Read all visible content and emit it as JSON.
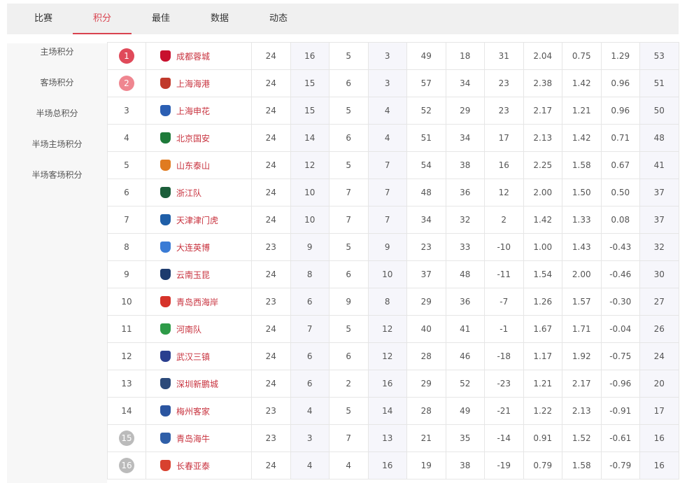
{
  "tabs": [
    "比赛",
    "积分",
    "最佳",
    "数据",
    "动态"
  ],
  "active_tab": 1,
  "sidebar": [
    "主场积分",
    "客场积分",
    "半场总积分",
    "半场主场积分",
    "半场客场积分"
  ],
  "colors": {
    "accent": "#d9434f",
    "rank1": "#e04a5a",
    "rank2": "#ef8690",
    "relegation": "#bbbbbb"
  },
  "rows": [
    {
      "rank": "1",
      "team": "成都蓉城",
      "logo": "#c8102e",
      "v": [
        "24",
        "16",
        "5",
        "3",
        "49",
        "18",
        "31",
        "2.04",
        "0.75",
        "1.29",
        "53"
      ]
    },
    {
      "rank": "2",
      "team": "上海海港",
      "logo": "#c0392b",
      "v": [
        "24",
        "15",
        "6",
        "3",
        "57",
        "34",
        "23",
        "2.38",
        "1.42",
        "0.96",
        "51"
      ]
    },
    {
      "rank": "3",
      "team": "上海申花",
      "logo": "#2b5fb3",
      "v": [
        "24",
        "15",
        "5",
        "4",
        "52",
        "29",
        "23",
        "2.17",
        "1.21",
        "0.96",
        "50"
      ]
    },
    {
      "rank": "4",
      "team": "北京国安",
      "logo": "#1e7a3a",
      "v": [
        "24",
        "14",
        "6",
        "4",
        "51",
        "34",
        "17",
        "2.13",
        "1.42",
        "0.71",
        "48"
      ]
    },
    {
      "rank": "5",
      "team": "山东泰山",
      "logo": "#e07b20",
      "v": [
        "24",
        "12",
        "5",
        "7",
        "54",
        "38",
        "16",
        "2.25",
        "1.58",
        "0.67",
        "41"
      ]
    },
    {
      "rank": "6",
      "team": "浙江队",
      "logo": "#1b5e3a",
      "v": [
        "24",
        "10",
        "7",
        "7",
        "48",
        "36",
        "12",
        "2.00",
        "1.50",
        "0.50",
        "37"
      ]
    },
    {
      "rank": "7",
      "team": "天津津门虎",
      "logo": "#1f5fa8",
      "v": [
        "24",
        "10",
        "7",
        "7",
        "34",
        "32",
        "2",
        "1.42",
        "1.33",
        "0.08",
        "37"
      ]
    },
    {
      "rank": "8",
      "team": "大连英博",
      "logo": "#3a7bd5",
      "v": [
        "23",
        "9",
        "5",
        "9",
        "23",
        "33",
        "-10",
        "1.00",
        "1.43",
        "-0.43",
        "32"
      ]
    },
    {
      "rank": "9",
      "team": "云南玉昆",
      "logo": "#1d3b6e",
      "v": [
        "24",
        "8",
        "6",
        "10",
        "37",
        "48",
        "-11",
        "1.54",
        "2.00",
        "-0.46",
        "30"
      ]
    },
    {
      "rank": "10",
      "team": "青岛西海岸",
      "logo": "#d6332a",
      "v": [
        "23",
        "6",
        "9",
        "8",
        "29",
        "36",
        "-7",
        "1.26",
        "1.57",
        "-0.30",
        "27"
      ]
    },
    {
      "rank": "11",
      "team": "河南队",
      "logo": "#2e9b48",
      "v": [
        "24",
        "7",
        "5",
        "12",
        "40",
        "41",
        "-1",
        "1.67",
        "1.71",
        "-0.04",
        "26"
      ]
    },
    {
      "rank": "12",
      "team": "武汉三镇",
      "logo": "#2a3f8f",
      "v": [
        "24",
        "6",
        "6",
        "12",
        "28",
        "46",
        "-18",
        "1.17",
        "1.92",
        "-0.75",
        "24"
      ]
    },
    {
      "rank": "13",
      "team": "深圳新鹏城",
      "logo": "#2c4a7a",
      "v": [
        "24",
        "6",
        "2",
        "16",
        "29",
        "52",
        "-23",
        "1.21",
        "2.17",
        "-0.96",
        "20"
      ]
    },
    {
      "rank": "14",
      "team": "梅州客家",
      "logo": "#2b55a0",
      "v": [
        "23",
        "4",
        "5",
        "14",
        "28",
        "49",
        "-21",
        "1.22",
        "2.13",
        "-0.91",
        "17"
      ]
    },
    {
      "rank": "15",
      "team": "青岛海牛",
      "logo": "#2f5fa8",
      "v": [
        "23",
        "3",
        "7",
        "13",
        "21",
        "35",
        "-14",
        "0.91",
        "1.52",
        "-0.61",
        "16"
      ]
    },
    {
      "rank": "16",
      "team": "长春亚泰",
      "logo": "#d8412f",
      "v": [
        "24",
        "4",
        "4",
        "16",
        "19",
        "38",
        "-19",
        "0.79",
        "1.58",
        "-0.79",
        "16"
      ]
    }
  ]
}
